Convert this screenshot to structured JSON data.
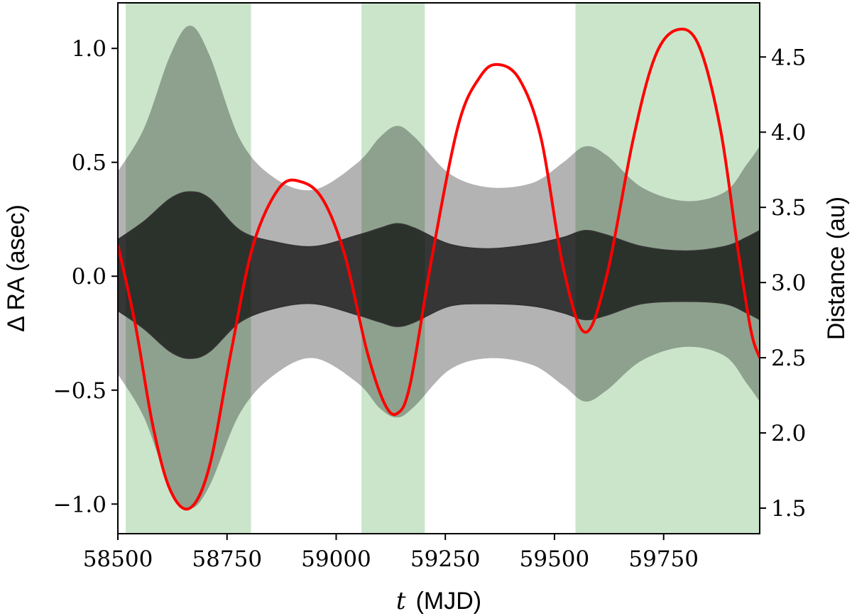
{
  "chart_data": {
    "type": "area",
    "xlabel_symbol": "t",
    "xlabel_unit": "(MJD)",
    "ylabel": "Δ RA (asec)",
    "y2label": "Distance (au)",
    "xlim": [
      58500,
      59970
    ],
    "ylim": [
      -1.13,
      1.2
    ],
    "y2lim": [
      1.33,
      4.86
    ],
    "xticks": [
      58500,
      58750,
      59000,
      59250,
      59500,
      59750
    ],
    "yticks": [
      -1.0,
      -0.5,
      0.0,
      0.5,
      1.0
    ],
    "ytick_labels": [
      "−1.0",
      "−0.5",
      "0.0",
      "0.5",
      "1.0"
    ],
    "y2ticks": [
      1.5,
      2.0,
      2.5,
      3.0,
      3.5,
      4.0,
      4.5
    ],
    "y2tick_labels": [
      "1.5",
      "2.0",
      "2.5",
      "3.0",
      "3.5",
      "4.0",
      "4.5"
    ],
    "grid": false,
    "colors": {
      "shade": "#cbe5cb",
      "outer_band": "#b3b3b3",
      "inner_band": "#4d4d4d",
      "band_edge": "#333333",
      "distance": "#ff0000"
    },
    "shaded_intervals": [
      [
        58518,
        58805
      ],
      [
        59058,
        59203
      ],
      [
        59548,
        59970
      ]
    ],
    "x": [
      58500,
      58560,
      58620,
      58665,
      58710,
      58780,
      58860,
      58950,
      59050,
      59100,
      59140,
      59180,
      59260,
      59350,
      59450,
      59520,
      59570,
      59620,
      59700,
      59800,
      59890,
      59940,
      59970
    ],
    "series": [
      {
        "role": "outer_upper",
        "values": [
          0.46,
          0.65,
          0.97,
          1.1,
          0.97,
          0.6,
          0.43,
          0.38,
          0.5,
          0.61,
          0.66,
          0.61,
          0.45,
          0.39,
          0.41,
          0.5,
          0.57,
          0.53,
          0.39,
          0.33,
          0.37,
          0.49,
          0.57
        ]
      },
      {
        "role": "outer_lower",
        "values": [
          -0.43,
          -0.62,
          -0.93,
          -1.02,
          -0.92,
          -0.6,
          -0.43,
          -0.36,
          -0.47,
          -0.58,
          -0.62,
          -0.57,
          -0.41,
          -0.36,
          -0.39,
          -0.48,
          -0.55,
          -0.5,
          -0.37,
          -0.31,
          -0.35,
          -0.47,
          -0.55
        ]
      },
      {
        "role": "inner_upper",
        "values": [
          0.16,
          0.24,
          0.34,
          0.37,
          0.34,
          0.2,
          0.15,
          0.13,
          0.18,
          0.21,
          0.23,
          0.21,
          0.14,
          0.12,
          0.14,
          0.17,
          0.2,
          0.18,
          0.13,
          0.11,
          0.13,
          0.17,
          0.2
        ]
      },
      {
        "role": "inner_lower",
        "values": [
          -0.15,
          -0.23,
          -0.33,
          -0.36,
          -0.33,
          -0.2,
          -0.14,
          -0.12,
          -0.17,
          -0.2,
          -0.22,
          -0.2,
          -0.13,
          -0.12,
          -0.13,
          -0.16,
          -0.19,
          -0.17,
          -0.12,
          -0.11,
          -0.12,
          -0.16,
          -0.19
        ]
      }
    ],
    "distance_curve": {
      "axis": "right",
      "x": [
        58500,
        58540,
        58580,
        58620,
        58665,
        58710,
        58760,
        58810,
        58870,
        58920,
        58970,
        59020,
        59070,
        59110,
        59140,
        59170,
        59220,
        59280,
        59330,
        59370,
        59420,
        59470,
        59520,
        59570,
        59620,
        59680,
        59730,
        59780,
        59830,
        59880,
        59920,
        59950,
        59970
      ],
      "values": [
        3.25,
        2.72,
        2.05,
        1.62,
        1.5,
        1.78,
        2.55,
        3.25,
        3.63,
        3.67,
        3.55,
        3.18,
        2.55,
        2.2,
        2.13,
        2.33,
        3.18,
        4.05,
        4.37,
        4.45,
        4.35,
        3.95,
        3.1,
        2.67,
        3.05,
        3.95,
        4.5,
        4.68,
        4.58,
        4.02,
        3.22,
        2.68,
        2.5
      ]
    }
  }
}
